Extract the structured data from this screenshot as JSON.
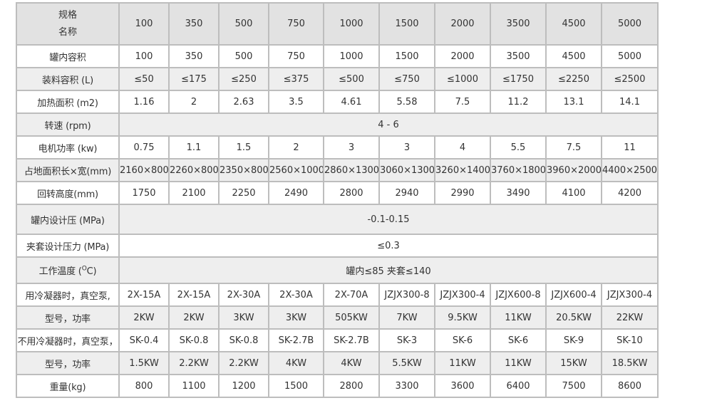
{
  "header": {
    "label_line1": "规格",
    "label_line2": "名称",
    "models": [
      "100",
      "350",
      "500",
      "750",
      "1000",
      "1500",
      "2000",
      "3500",
      "4500",
      "5000"
    ]
  },
  "rows": [
    {
      "label": "罐内容积",
      "values": [
        "100",
        "350",
        "500",
        "750",
        "1000",
        "1500",
        "2000",
        "3500",
        "4500",
        "5000"
      ]
    },
    {
      "label": "装料容积 (L)",
      "values": [
        "≤50",
        "≤175",
        "≤250",
        "≤375",
        "≤500",
        "≤750",
        "≤1000",
        "≤1750",
        "≤2250",
        "≤2500"
      ]
    },
    {
      "label": "加热面积 (m2)",
      "values": [
        "1.16",
        "2",
        "2.63",
        "3.5",
        "4.61",
        "5.58",
        "7.5",
        "11.2",
        "13.1",
        "14.1"
      ]
    },
    {
      "label": "转速 (rpm)",
      "span": "4 - 6"
    },
    {
      "label": "电机功率 (kw)",
      "values": [
        "0.75",
        "1.1",
        "1.5",
        "2",
        "3",
        "3",
        "4",
        "5.5",
        "7.5",
        "11"
      ]
    },
    {
      "label": "占地面积长×宽(mm)",
      "values": [
        "2160×800",
        "2260×800",
        "2350×800",
        "2560×1000",
        "2860×1300",
        "3060×1300",
        "3260×1400",
        "3760×1800",
        "3960×2000",
        "4400×2500"
      ]
    },
    {
      "label": "回转高度(mm)",
      "values": [
        "1750",
        "2100",
        "2250",
        "2490",
        "2800",
        "2940",
        "2990",
        "3490",
        "4100",
        "4200"
      ]
    },
    {
      "label": "罐内设计压 (MPa)",
      "span": "-0.1-0.15"
    },
    {
      "label": "夹套设计压力 (MPa)",
      "span": "≤0.3"
    },
    {
      "label_prefix": "工作温度 (",
      "label_sup": "O",
      "label_suffix": "C)",
      "span": "罐内≤85 夹套≤140"
    },
    {
      "label": "用冷凝器时，真空泵,",
      "values": [
        "2X-15A",
        "2X-15A",
        "2X-30A",
        "2X-30A",
        "2X-70A",
        "JZJX300-8",
        "JZJX300-4",
        "JZJX600-8",
        "JZJX600-4",
        "JZJX300-4"
      ]
    },
    {
      "label": "型号，功率",
      "values": [
        "2KW",
        "2KW",
        "3KW",
        "3KW",
        "505KW",
        "7KW",
        "9.5KW",
        "11KW",
        "20.5KW",
        "22KW"
      ]
    },
    {
      "label": "不用冷凝器时，真空泵，",
      "values": [
        "SK-0.4",
        "SK-0.8",
        "SK-0.8",
        "SK-2.7B",
        "SK-2.7B",
        "SK-3",
        "SK-6",
        "SK-6",
        "SK-9",
        "SK-10"
      ]
    },
    {
      "label": "型号，功率",
      "values": [
        "1.5KW",
        "2.2KW",
        "2.2KW",
        "4KW",
        "4KW",
        "5.5KW",
        "11KW",
        "11KW",
        "15KW",
        "18.5KW"
      ]
    },
    {
      "label": "重量(kg)",
      "values": [
        "800",
        "1100",
        "1200",
        "1500",
        "2800",
        "3300",
        "3600",
        "6400",
        "7500",
        "8600"
      ]
    }
  ]
}
